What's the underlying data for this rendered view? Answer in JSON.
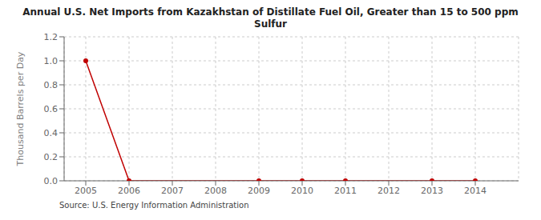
{
  "chart_data": {
    "type": "line",
    "title": "Annual U.S. Net Imports from Kazakhstan of Distillate Fuel Oil, Greater than 15 to 500 ppm\nSulfur",
    "ylabel": "Thousand Barrels per Day",
    "source": "Source: U.S. Energy Information Administration",
    "x": [
      2005,
      2006,
      2007,
      2008,
      2009,
      2010,
      2011,
      2012,
      2013,
      2014
    ],
    "xlim": [
      2004.5,
      2015.0
    ],
    "xticks": [
      2005,
      2006,
      2007,
      2008,
      2009,
      2010,
      2011,
      2012,
      2013,
      2014
    ],
    "ylim": [
      0.0,
      1.2
    ],
    "yticks": [
      {
        "value": 0.0,
        "label": "0.0"
      },
      0.2,
      0.4,
      0.6,
      0.8,
      {
        "value": 1.0,
        "label": "1.0"
      },
      1.2
    ],
    "grid": true,
    "series": [
      {
        "type": "line",
        "color": "#c00000",
        "values": [
          1.0,
          0.0,
          0.0,
          0.0,
          0.0,
          0.0,
          0.0,
          0.0,
          0.0,
          0.0
        ]
      },
      {
        "type": "scatter",
        "marker": "circle",
        "color": "#c00000",
        "x": [
          2005,
          2006,
          2009,
          2010,
          2011,
          2013,
          2014
        ],
        "values": [
          1.0,
          0.0,
          0.0,
          0.0,
          0.0,
          0.0,
          0.0
        ]
      }
    ]
  }
}
